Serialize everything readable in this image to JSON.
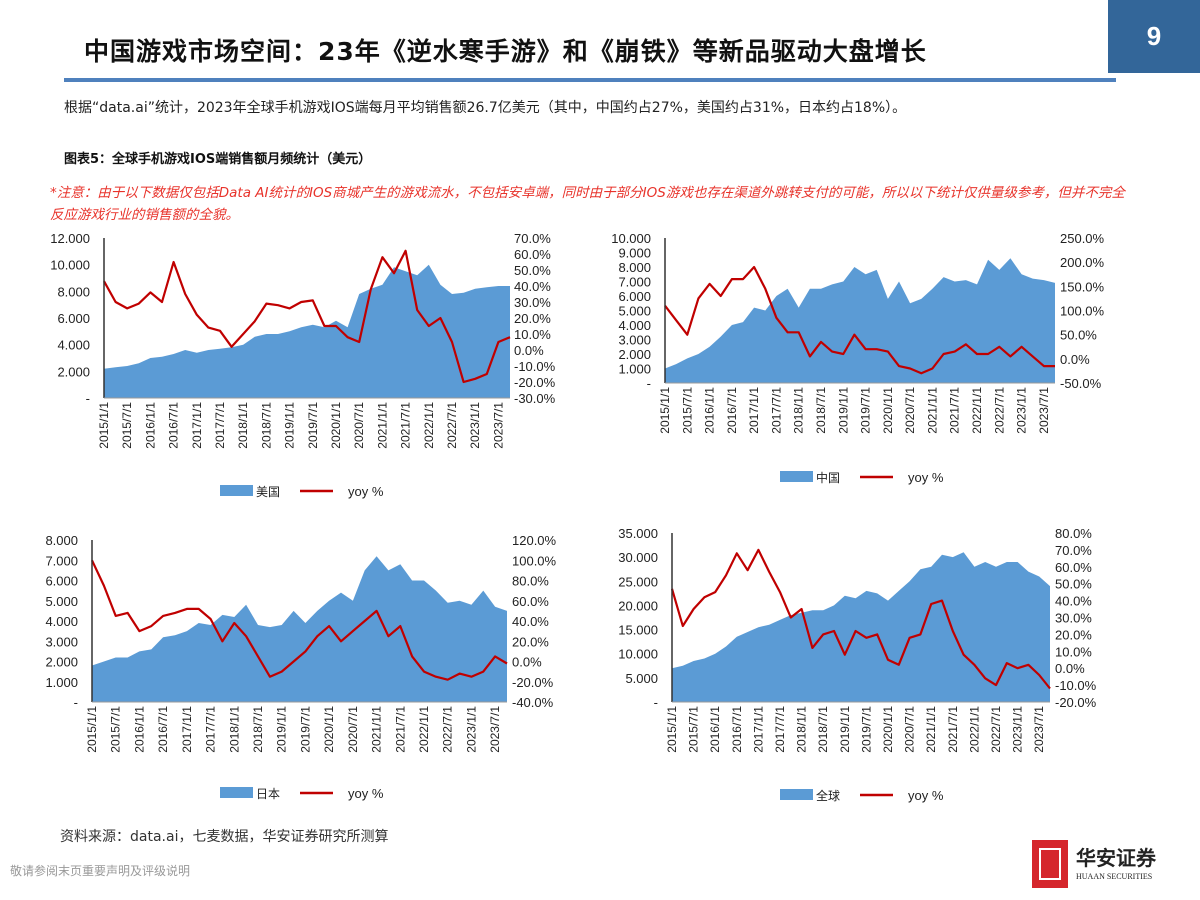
{
  "header": {
    "title": "中国游戏市场空间：23年《逆水寒手游》和《崩铁》等新品驱动大盘增长",
    "page_number": "9"
  },
  "intro": "根据“data.ai”统计，2023年全球手机游戏IOS端每月平均销售额26.7亿美元（其中，中国约占27%，美国约占31%，日本约占18%）。",
  "figure_title": "图表5：全球手机游戏IOS端销售额月频统计（美元）",
  "note": "*注意：由于以下数据仅包括Data AI统计的IOS商城产生的游戏流水，不包括安卓端，同时由于部分IOS游戏也存在渠道外跳转支付的可能，所以以下统计仅供量级参考，但并不完全反应游戏行业的销售额的全貌。",
  "footer": {
    "source": "资料来源：data.ai，七麦数据，华安证券研究所测算",
    "disclaimer": "敬请参阅末页重要声明及评级说明",
    "logo_cn": "华安证券",
    "logo_en": "HUAAN SECURITIES"
  },
  "colors": {
    "area": "#5b9bd5",
    "line": "#c00000",
    "accent": "#336699",
    "note": "#e8332b"
  },
  "chart_data": [
    {
      "type": "area+line",
      "x_labels": [
        "2015/1/1",
        "2015/7/1",
        "2016/1/1",
        "2016/7/1",
        "2017/1/1",
        "2017/7/1",
        "2018/1/1",
        "2018/7/1",
        "2019/1/1",
        "2019/7/1",
        "2020/1/1",
        "2020/7/1",
        "2021/1/1",
        "2021/7/1",
        "2022/1/1",
        "2022/7/1",
        "2023/1/1",
        "2023/7/1"
      ],
      "legend": [
        "美国",
        "yoy %"
      ],
      "ylim": [
        0,
        12
      ],
      "y_ticks": [
        "-",
        "2.000",
        "4.000",
        "6.000",
        "8.000",
        "10.000",
        "12.000"
      ],
      "y2lim": [
        -30,
        70
      ],
      "y2_ticks": [
        "-30.0%",
        "-20.0%",
        "-10.0%",
        "0.0%",
        "10.0%",
        "20.0%",
        "30.0%",
        "40.0%",
        "50.0%",
        "60.0%",
        "70.0%"
      ],
      "area": [
        2.2,
        2.3,
        2.4,
        2.6,
        3.0,
        3.1,
        3.3,
        3.6,
        3.4,
        3.6,
        3.7,
        3.8,
        4.0,
        4.6,
        4.8,
        4.8,
        5.0,
        5.3,
        5.5,
        5.3,
        5.8,
        5.3,
        7.8,
        8.2,
        8.5,
        9.8,
        9.5,
        9.2,
        10.0,
        8.5,
        7.8,
        7.9,
        8.2,
        8.3,
        8.4,
        8.4
      ],
      "yoy": [
        43,
        30,
        26,
        29,
        36,
        30,
        55,
        35,
        22,
        14,
        12,
        2,
        10,
        18,
        29,
        28,
        26,
        30,
        31,
        15,
        15,
        8,
        5,
        38,
        58,
        48,
        62,
        25,
        15,
        20,
        5,
        -20,
        -18,
        -15,
        5,
        8
      ]
    },
    {
      "type": "area+line",
      "x_labels": [
        "2015/1/1",
        "2015/7/1",
        "2016/1/1",
        "2016/7/1",
        "2017/1/1",
        "2017/7/1",
        "2018/1/1",
        "2018/7/1",
        "2019/1/1",
        "2019/7/1",
        "2020/1/1",
        "2020/7/1",
        "2021/1/1",
        "2021/7/1",
        "2022/1/1",
        "2022/7/1",
        "2023/1/1",
        "2023/7/1"
      ],
      "legend": [
        "中国",
        "yoy %"
      ],
      "ylim": [
        0,
        10
      ],
      "y_ticks": [
        "-",
        "1.000",
        "2.000",
        "3.000",
        "4.000",
        "5.000",
        "6.000",
        "7.000",
        "8.000",
        "9.000",
        "10.000"
      ],
      "y2lim": [
        -50,
        250
      ],
      "y2_ticks": [
        "-50.0%",
        "0.0%",
        "50.0%",
        "100.0%",
        "150.0%",
        "200.0%",
        "250.0%"
      ],
      "area": [
        1.0,
        1.3,
        1.7,
        2.0,
        2.5,
        3.2,
        4.0,
        4.2,
        5.2,
        5.0,
        6.0,
        6.5,
        5.2,
        6.5,
        6.5,
        6.8,
        7.0,
        8.0,
        7.5,
        7.8,
        5.8,
        7.0,
        5.5,
        5.8,
        6.5,
        7.3,
        7.0,
        7.1,
        6.8,
        8.5,
        7.8,
        8.6,
        7.5,
        7.2,
        7.1,
        6.9
      ],
      "yoy": [
        110,
        80,
        50,
        125,
        155,
        130,
        165,
        165,
        190,
        145,
        85,
        55,
        55,
        5,
        35,
        15,
        10,
        50,
        20,
        20,
        15,
        -15,
        -20,
        -30,
        -20,
        10,
        15,
        30,
        10,
        10,
        25,
        5,
        25,
        5,
        -15,
        -15
      ]
    },
    {
      "type": "area+line",
      "x_labels": [
        "2015/1/1",
        "2015/7/1",
        "2016/1/1",
        "2016/7/1",
        "2017/1/1",
        "2017/7/1",
        "2018/1/1",
        "2018/7/1",
        "2019/1/1",
        "2019/7/1",
        "2020/1/1",
        "2020/7/1",
        "2021/1/1",
        "2021/7/1",
        "2022/1/1",
        "2022/7/1",
        "2023/1/1",
        "2023/7/1"
      ],
      "legend": [
        "日本",
        "yoy %"
      ],
      "ylim": [
        0,
        8
      ],
      "y_ticks": [
        "-",
        "1.000",
        "2.000",
        "3.000",
        "4.000",
        "5.000",
        "6.000",
        "7.000",
        "8.000"
      ],
      "y2lim": [
        -40,
        120
      ],
      "y2_ticks": [
        "-40.0%",
        "-20.0%",
        "0.0%",
        "20.0%",
        "40.0%",
        "60.0%",
        "80.0%",
        "100.0%",
        "120.0%"
      ],
      "area": [
        1.8,
        2.0,
        2.2,
        2.2,
        2.5,
        2.6,
        3.2,
        3.3,
        3.5,
        3.9,
        3.8,
        4.3,
        4.2,
        4.8,
        3.8,
        3.7,
        3.8,
        4.5,
        3.9,
        4.5,
        5.0,
        5.4,
        5.0,
        6.5,
        7.2,
        6.5,
        6.8,
        6.0,
        6.0,
        5.5,
        4.9,
        5.0,
        4.8,
        5.5,
        4.7,
        4.5
      ],
      "yoy": [
        100,
        75,
        45,
        48,
        30,
        35,
        45,
        48,
        52,
        52,
        42,
        20,
        38,
        25,
        5,
        -15,
        -10,
        0,
        10,
        25,
        35,
        20,
        30,
        40,
        50,
        25,
        35,
        5,
        -10,
        -15,
        -18,
        -12,
        -15,
        -10,
        5,
        -2
      ]
    },
    {
      "type": "area+line",
      "x_labels": [
        "2015/1/1",
        "2015/7/1",
        "2016/1/1",
        "2016/7/1",
        "2017/1/1",
        "2017/7/1",
        "2018/1/1",
        "2018/7/1",
        "2019/1/1",
        "2019/7/1",
        "2020/1/1",
        "2020/7/1",
        "2021/1/1",
        "2021/7/1",
        "2022/1/1",
        "2022/7/1",
        "2023/1/1",
        "2023/7/1"
      ],
      "legend": [
        "全球",
        "yoy %"
      ],
      "ylim": [
        0,
        35
      ],
      "y_ticks": [
        "-",
        "5.000",
        "10.000",
        "15.000",
        "20.000",
        "25.000",
        "30.000",
        "35.000"
      ],
      "y2lim": [
        -20,
        80
      ],
      "y2_ticks": [
        "-20.0%",
        "-10.0%",
        "0.0%",
        "10.0%",
        "20.0%",
        "30.0%",
        "40.0%",
        "50.0%",
        "60.0%",
        "70.0%",
        "80.0%"
      ],
      "area": [
        7,
        7.5,
        8.5,
        9,
        10,
        11.5,
        13.5,
        14.5,
        15.5,
        16,
        17,
        18,
        18.5,
        19,
        19,
        20,
        22,
        21.5,
        23,
        22.5,
        21,
        23,
        25,
        27.5,
        28,
        30.5,
        30,
        31,
        28,
        29,
        28,
        29,
        29,
        27,
        26,
        24
      ],
      "yoy": [
        47,
        25,
        35,
        42,
        45,
        55,
        68,
        58,
        70,
        57,
        45,
        30,
        35,
        12,
        20,
        22,
        8,
        22,
        18,
        20,
        5,
        2,
        18,
        20,
        38,
        40,
        22,
        8,
        2,
        -6,
        -10,
        3,
        0,
        2,
        -4,
        -12
      ]
    }
  ]
}
